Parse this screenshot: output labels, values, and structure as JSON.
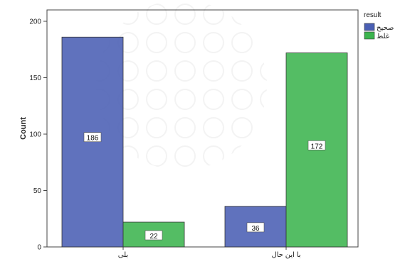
{
  "chart_data": {
    "type": "bar",
    "ylabel": "Count",
    "xlabel": "",
    "ylim": [
      0,
      200
    ],
    "yticks": [
      0,
      50,
      100,
      150,
      200
    ],
    "categories": [
      "بلی",
      "با این حال"
    ],
    "legend": {
      "title": "result",
      "position": "top-right"
    },
    "series": [
      {
        "name": "صحیح",
        "color": "#4a5fb4",
        "values": [
          186,
          36
        ]
      },
      {
        "name": "غلط",
        "color": "#3cb44e",
        "values": [
          22,
          172
        ]
      }
    ],
    "grid": false
  }
}
